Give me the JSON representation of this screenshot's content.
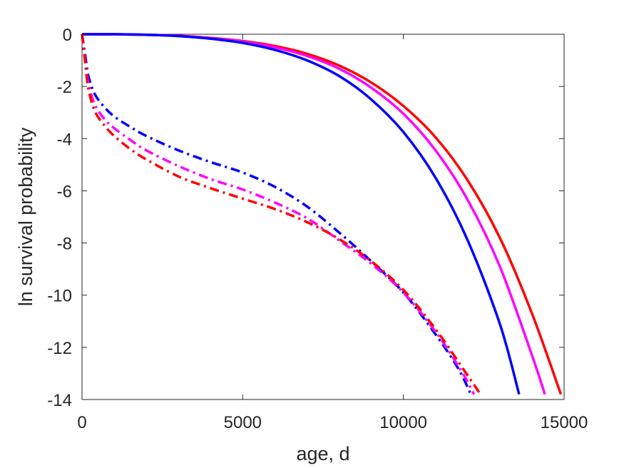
{
  "chart_data": {
    "type": "line",
    "title": "",
    "xlabel": "age, d",
    "ylabel": "ln survival probability",
    "xlim": [
      0,
      15000
    ],
    "ylim": [
      -14,
      0
    ],
    "xticks": [
      0,
      5000,
      10000,
      15000
    ],
    "xtick_labels": [
      "0",
      "5000",
      "10000",
      "15000"
    ],
    "yticks": [
      0,
      -2,
      -4,
      -6,
      -8,
      -10,
      -12,
      -14
    ],
    "ytick_labels": [
      "0",
      "-2",
      "-4",
      "-6",
      "-8",
      "-10",
      "-12",
      "-14"
    ],
    "grid": false,
    "legend": "none",
    "series": [
      {
        "color": "#ff0000",
        "style": "solid",
        "x": [
          0,
          1000,
          2000,
          3000,
          4000,
          5000,
          6000,
          7000,
          8000,
          9000,
          10000,
          11000,
          12000,
          13000,
          14000,
          14900
        ],
        "y": [
          0,
          0,
          -0.02,
          -0.06,
          -0.14,
          -0.26,
          -0.45,
          -0.75,
          -1.2,
          -1.85,
          -2.75,
          -3.95,
          -5.6,
          -7.8,
          -10.7,
          -13.8
        ]
      },
      {
        "color": "#ff00ff",
        "style": "solid",
        "x": [
          0,
          1000,
          2000,
          3000,
          4000,
          5000,
          6000,
          7000,
          8000,
          9000,
          10000,
          11000,
          12000,
          13000,
          14000,
          14400
        ],
        "y": [
          0,
          0,
          -0.02,
          -0.06,
          -0.15,
          -0.28,
          -0.5,
          -0.83,
          -1.32,
          -2.05,
          -3.05,
          -4.45,
          -6.35,
          -8.9,
          -12.3,
          -13.8
        ]
      },
      {
        "color": "#0000ff",
        "style": "solid",
        "x": [
          0,
          1000,
          2000,
          3000,
          4000,
          5000,
          6000,
          7000,
          8000,
          9000,
          10000,
          11000,
          12000,
          13000,
          13600
        ],
        "y": [
          0,
          0,
          -0.02,
          -0.07,
          -0.17,
          -0.33,
          -0.6,
          -1.0,
          -1.6,
          -2.5,
          -3.75,
          -5.5,
          -7.9,
          -11.1,
          -13.8
        ]
      },
      {
        "color": "#0000ff",
        "style": "dashdot",
        "x": [
          0,
          100,
          200,
          400,
          700,
          1000,
          1500,
          2000,
          3000,
          4000,
          5000,
          6000,
          7000,
          8000,
          9000,
          10000,
          11000,
          11700,
          12100
        ],
        "y": [
          0,
          -0.8,
          -1.6,
          -2.3,
          -2.8,
          -3.15,
          -3.55,
          -3.9,
          -4.45,
          -4.9,
          -5.3,
          -5.85,
          -6.6,
          -7.6,
          -8.7,
          -9.9,
          -11.5,
          -12.8,
          -13.8
        ]
      },
      {
        "color": "#ff00ff",
        "style": "dashdot",
        "x": [
          0,
          100,
          200,
          400,
          700,
          1000,
          1500,
          2000,
          3000,
          4000,
          5000,
          6000,
          7000,
          8000,
          9000,
          10000,
          11000,
          11800,
          12200
        ],
        "y": [
          0,
          -1.0,
          -1.9,
          -2.7,
          -3.25,
          -3.6,
          -4.05,
          -4.45,
          -5.05,
          -5.55,
          -5.95,
          -6.45,
          -7.05,
          -7.9,
          -8.8,
          -9.9,
          -11.4,
          -12.9,
          -13.8
        ]
      },
      {
        "color": "#ff0000",
        "style": "dashdot",
        "x": [
          0,
          100,
          200,
          400,
          700,
          1000,
          1500,
          2000,
          3000,
          4000,
          5000,
          6000,
          7000,
          8000,
          9000,
          10000,
          11000,
          11900,
          12400
        ],
        "y": [
          0,
          -1.1,
          -2.1,
          -2.95,
          -3.5,
          -3.9,
          -4.4,
          -4.8,
          -5.45,
          -5.9,
          -6.3,
          -6.7,
          -7.2,
          -7.85,
          -8.7,
          -9.8,
          -11.3,
          -12.9,
          -13.8
        ]
      }
    ]
  }
}
